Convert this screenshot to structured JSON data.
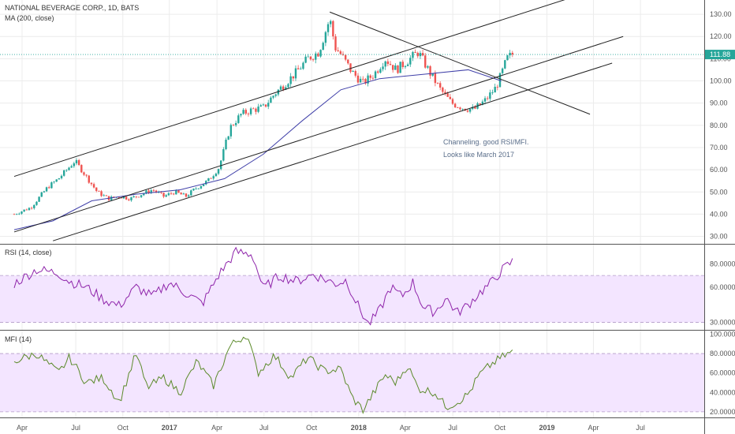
{
  "header": {
    "symbol_title": "NATIONAL BEVERAGE CORP., 1D, BATS",
    "ma_label": "MA (200, close)"
  },
  "price_tag": "111.88",
  "annotation": {
    "line1": "Channeling. good RSI/MFI.",
    "line2": "Looks like March 2017"
  },
  "rsi_panel": {
    "title": "RSI (14, close)"
  },
  "mfi_panel": {
    "title": "MFI (14)"
  },
  "colors": {
    "up": "#26a69a",
    "down": "#ef5350",
    "ma": "#3f3fa8",
    "rsi": "#8e24aa",
    "mfi": "#5b8a2a",
    "band_fill": "#f3e5ff",
    "price_line": "#26a69a"
  },
  "chart_data": [
    {
      "type": "candlestick",
      "x_ticks": [
        "Apr",
        "Jul",
        "Oct",
        "2017",
        "Apr",
        "Jul",
        "Oct",
        "2018",
        "Apr",
        "Jul",
        "Oct",
        "2019",
        "Apr",
        "Jul"
      ],
      "y_ticks": [
        "30.00",
        "40.00",
        "50.00",
        "60.00",
        "70.00",
        "80.00",
        "90.00",
        "100.00",
        "110.00",
        "120.00",
        "130.00"
      ],
      "ylim": [
        27,
        135
      ],
      "last_price": 111.88,
      "close_path": [
        [
          0,
          40
        ],
        [
          3,
          43
        ],
        [
          6,
          52
        ],
        [
          8,
          56
        ],
        [
          11,
          64
        ],
        [
          13,
          57
        ],
        [
          15,
          50
        ],
        [
          17,
          47
        ],
        [
          19,
          48
        ],
        [
          21,
          47
        ],
        [
          23,
          49
        ],
        [
          25,
          51
        ],
        [
          27,
          48
        ],
        [
          29,
          50
        ],
        [
          31,
          48
        ],
        [
          33,
          52
        ],
        [
          35,
          55
        ],
        [
          37,
          61
        ],
        [
          39,
          79
        ],
        [
          41,
          85
        ],
        [
          43,
          87
        ],
        [
          45,
          88
        ],
        [
          47,
          94
        ],
        [
          49,
          99
        ],
        [
          51,
          104
        ],
        [
          53,
          110
        ],
        [
          55,
          113
        ],
        [
          57,
          128
        ],
        [
          58,
          115
        ],
        [
          59,
          112
        ],
        [
          61,
          104
        ],
        [
          63,
          99
        ],
        [
          65,
          103
        ],
        [
          67,
          110
        ],
        [
          69,
          105
        ],
        [
          71,
          109
        ],
        [
          73,
          113
        ],
        [
          75,
          104
        ],
        [
          77,
          96
        ],
        [
          79,
          90
        ],
        [
          81,
          88
        ],
        [
          83,
          87
        ],
        [
          85,
          91
        ],
        [
          87,
          97
        ],
        [
          88,
          103
        ],
        [
          89,
          110
        ],
        [
          90,
          112
        ]
      ],
      "overlays": [
        {
          "name": "MA (200, close)",
          "path": [
            [
              0,
              33
            ],
            [
              7,
              37
            ],
            [
              14,
              46
            ],
            [
              22,
              49
            ],
            [
              30,
              51
            ],
            [
              38,
              56
            ],
            [
              45,
              67
            ],
            [
              52,
              82
            ],
            [
              59,
              96
            ],
            [
              66,
              101
            ],
            [
              74,
              103
            ],
            [
              82,
              105
            ],
            [
              88,
              100
            ]
          ]
        },
        {
          "type": "trendline",
          "from": [
            0,
            57
          ],
          "to": [
            100,
            137
          ]
        },
        {
          "type": "trendline",
          "from": [
            0,
            32
          ],
          "to": [
            110,
            120
          ]
        },
        {
          "type": "trendline",
          "from": [
            7,
            28
          ],
          "to": [
            108,
            108
          ]
        },
        {
          "type": "trendline",
          "from": [
            57,
            131
          ],
          "to": [
            104,
            85
          ]
        }
      ]
    },
    {
      "type": "line",
      "title": "RSI (14, close)",
      "y_ticks": [
        "30.0000",
        "60.0000",
        "80.0000"
      ],
      "ylim": [
        25,
        95
      ],
      "bands": [
        30,
        70
      ],
      "path": [
        [
          0,
          63
        ],
        [
          4,
          75
        ],
        [
          8,
          72
        ],
        [
          10,
          65
        ],
        [
          13,
          60
        ],
        [
          16,
          50
        ],
        [
          19,
          44
        ],
        [
          22,
          60
        ],
        [
          25,
          52
        ],
        [
          28,
          64
        ],
        [
          31,
          55
        ],
        [
          34,
          46
        ],
        [
          37,
          71
        ],
        [
          40,
          90
        ],
        [
          43,
          88
        ],
        [
          45,
          59
        ],
        [
          48,
          70
        ],
        [
          51,
          65
        ],
        [
          54,
          71
        ],
        [
          58,
          63
        ],
        [
          60,
          66
        ],
        [
          62,
          45
        ],
        [
          64,
          28
        ],
        [
          66,
          40
        ],
        [
          68,
          60
        ],
        [
          70,
          52
        ],
        [
          72,
          64
        ],
        [
          74,
          42
        ],
        [
          76,
          39
        ],
        [
          78,
          51
        ],
        [
          80,
          38
        ],
        [
          82,
          45
        ],
        [
          84,
          55
        ],
        [
          86,
          63
        ],
        [
          88,
          74
        ],
        [
          90,
          82
        ]
      ]
    },
    {
      "type": "line",
      "title": "MFI (14)",
      "y_ticks": [
        "20.0000",
        "40.0000",
        "60.0000",
        "80.0000",
        "100.0000"
      ],
      "ylim": [
        15,
        102
      ],
      "bands": [
        20,
        80
      ],
      "path": [
        [
          0,
          72
        ],
        [
          4,
          80
        ],
        [
          8,
          60
        ],
        [
          10,
          76
        ],
        [
          13,
          50
        ],
        [
          16,
          55
        ],
        [
          19,
          30
        ],
        [
          22,
          80
        ],
        [
          24,
          45
        ],
        [
          27,
          55
        ],
        [
          30,
          40
        ],
        [
          33,
          72
        ],
        [
          36,
          47
        ],
        [
          39,
          88
        ],
        [
          42,
          100
        ],
        [
          44,
          60
        ],
        [
          47,
          78
        ],
        [
          50,
          55
        ],
        [
          53,
          76
        ],
        [
          56,
          62
        ],
        [
          59,
          64
        ],
        [
          61,
          35
        ],
        [
          63,
          22
        ],
        [
          65,
          40
        ],
        [
          67,
          58
        ],
        [
          69,
          50
        ],
        [
          71,
          68
        ],
        [
          73,
          44
        ],
        [
          76,
          40
        ],
        [
          78,
          25
        ],
        [
          80,
          30
        ],
        [
          82,
          38
        ],
        [
          84,
          58
        ],
        [
          86,
          68
        ],
        [
          88,
          76
        ],
        [
          90,
          82
        ]
      ]
    }
  ]
}
